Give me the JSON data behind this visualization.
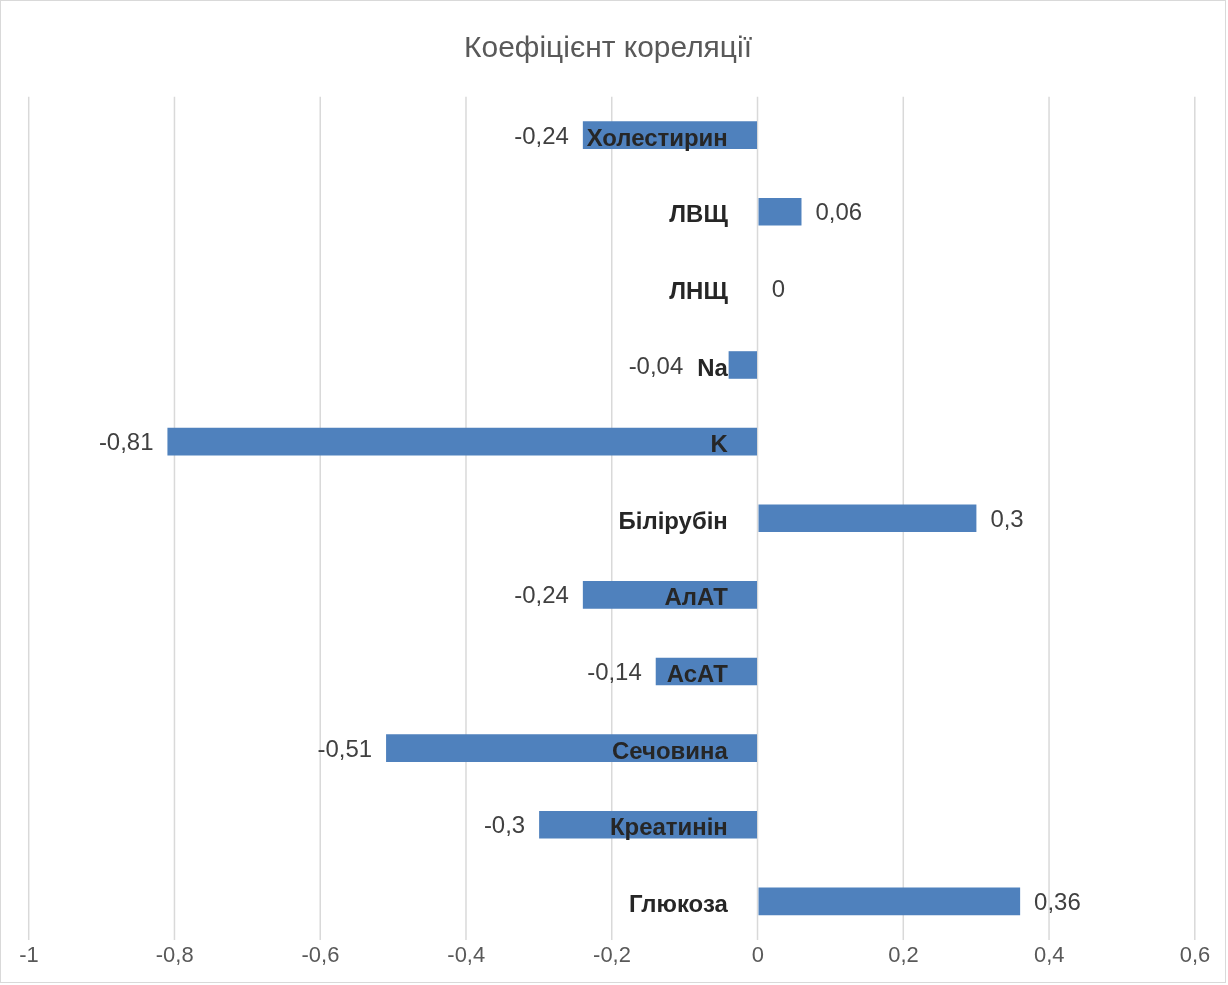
{
  "chart_data": {
    "type": "bar",
    "orientation": "horizontal",
    "title": "Коефіцієнт кореляції",
    "categories": [
      "Холестирин",
      "ЛВЩ",
      "ЛНЩ",
      "Na",
      "K",
      "Білірубін",
      "АлАТ",
      "АсАТ",
      "Сечовина",
      "Креатинін",
      "Глюкоза"
    ],
    "values": [
      -0.24,
      0.06,
      0,
      -0.04,
      -0.81,
      0.3,
      -0.24,
      -0.14,
      -0.51,
      -0.3,
      0.36
    ],
    "value_labels": [
      "-0,24",
      "0,06",
      "0",
      "-0,04",
      "-0,81",
      "0,3",
      "-0,24",
      "-0,14",
      "-0,51",
      "-0,3",
      "0,36"
    ],
    "color": "#4f81bd",
    "xlim": [
      -1,
      0.6
    ],
    "xticks": [
      {
        "value": -1,
        "label": "-1"
      },
      {
        "value": -0.8,
        "label": "-0,8"
      },
      {
        "value": -0.6,
        "label": "-0,6"
      },
      {
        "value": -0.4,
        "label": "-0,4"
      },
      {
        "value": -0.2,
        "label": "-0,2"
      },
      {
        "value": 0,
        "label": "0"
      },
      {
        "value": 0.2,
        "label": "0,2"
      },
      {
        "value": 0.4,
        "label": "0,4"
      },
      {
        "value": 0.6,
        "label": "0,6"
      }
    ],
    "grid": "x",
    "legend": false
  }
}
